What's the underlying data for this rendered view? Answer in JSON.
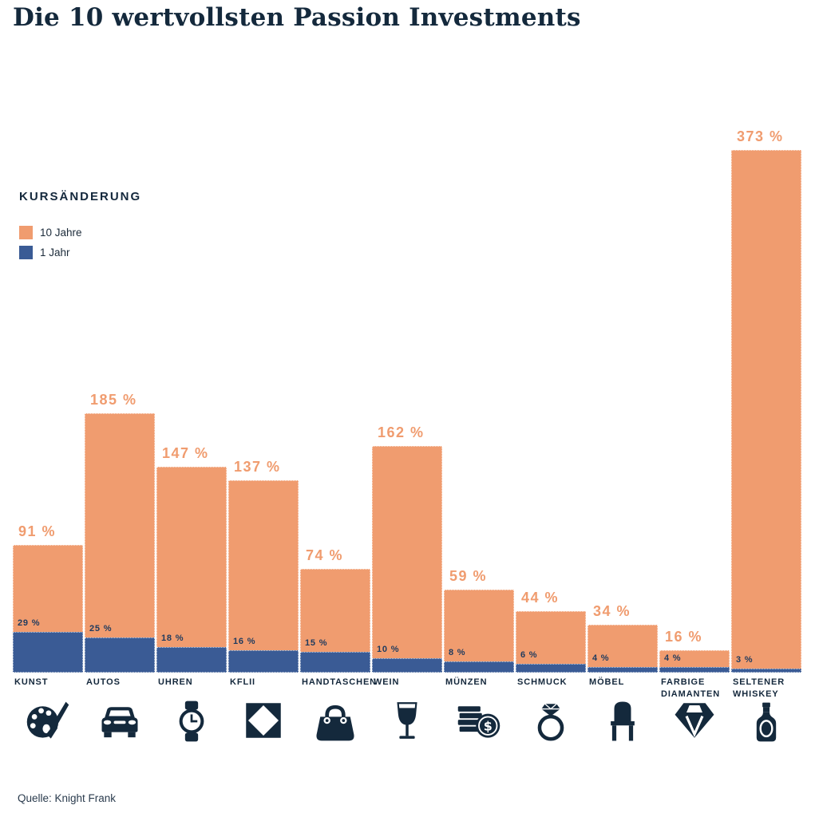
{
  "title": "Die 10 wertvollsten Passion Investments",
  "legend": {
    "heading": "KURSÄNDERUNG",
    "items": [
      {
        "label": "10 Jahre",
        "color": "#F09C6F"
      },
      {
        "label": "1 Jahr",
        "color": "#3A5B95"
      }
    ]
  },
  "colors": {
    "orange": "#F09C6F",
    "blue": "#3A5B95",
    "navy": "#14293C",
    "value_label_navy": "#1E3A5E"
  },
  "source": "Quelle: Knight Frank",
  "chart_data": {
    "type": "bar",
    "title": "Die 10 wertvollsten Passion Investments",
    "categories": [
      "KUNST",
      "AUTOS",
      "UHREN",
      "KFLII",
      "HANDTASCHEN",
      "WEIN",
      "MÜNZEN",
      "SCHMUCK",
      "MÖBEL",
      "FARBIGE DIAMANTEN",
      "SELTENER WHISKEY"
    ],
    "series": [
      {
        "name": "10 Jahre",
        "color": "#F09C6F",
        "values": [
          91,
          185,
          147,
          137,
          74,
          162,
          59,
          44,
          34,
          16,
          373
        ]
      },
      {
        "name": "1 Jahr",
        "color": "#3A5B95",
        "values": [
          29,
          25,
          18,
          16,
          15,
          10,
          8,
          6,
          4,
          4,
          3
        ]
      }
    ],
    "value_suffix": " %",
    "ylabel": "Kursänderung",
    "ylim": [
      0,
      400
    ],
    "grid": false,
    "legend_position": "upper-left",
    "icons": [
      "palette",
      "car",
      "watch",
      "checker",
      "handbag",
      "wine",
      "coins",
      "ring",
      "chair",
      "diamond",
      "bottle"
    ]
  }
}
